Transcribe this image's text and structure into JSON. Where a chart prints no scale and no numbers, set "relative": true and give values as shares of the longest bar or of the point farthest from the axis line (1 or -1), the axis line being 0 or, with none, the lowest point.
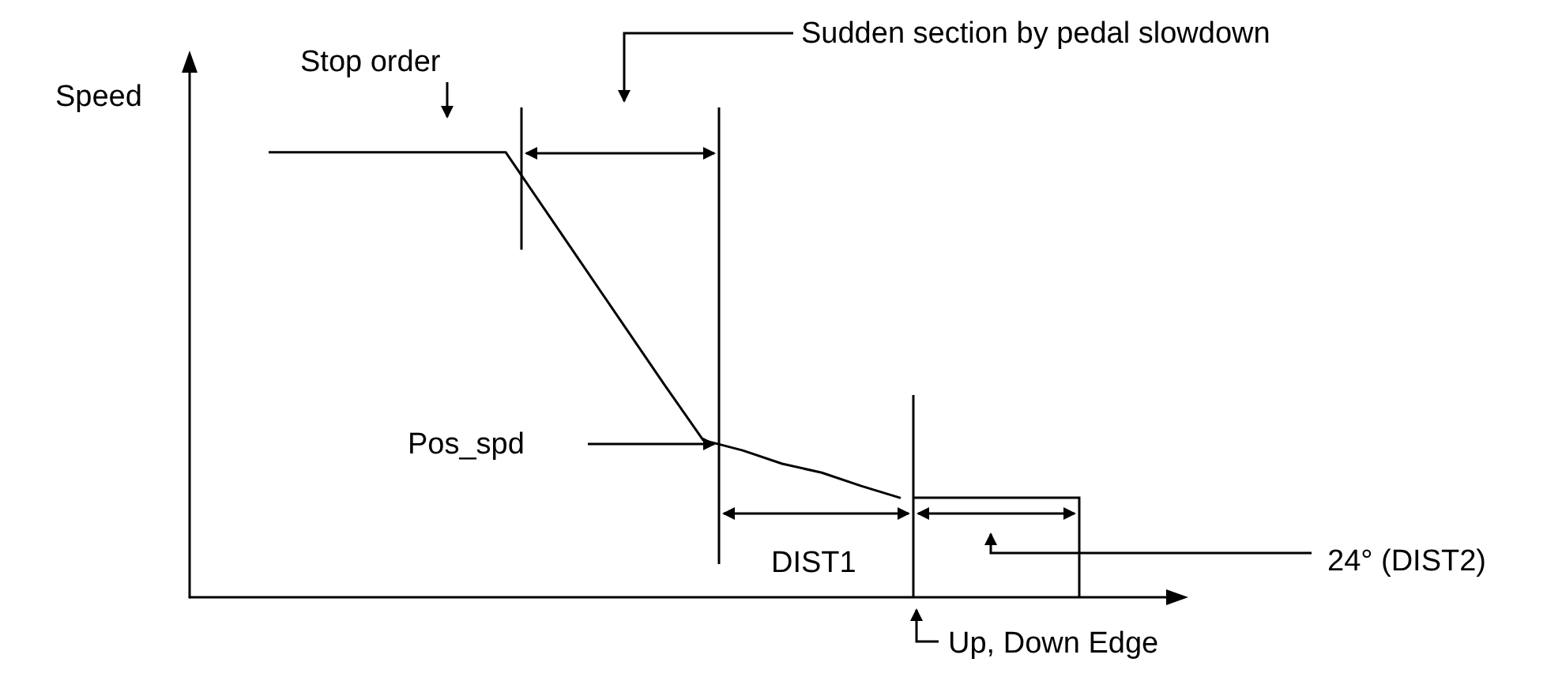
{
  "chart_data": {
    "type": "line",
    "relative": true,
    "ylabel": "Speed",
    "marker": "none",
    "line_style": "solid",
    "categories": [
      null,
      null,
      null,
      null,
      null,
      null,
      null,
      null,
      null,
      null,
      null,
      null,
      null,
      null,
      null,
      null,
      null,
      null,
      null,
      null,
      null,
      null,
      null,
      null,
      null,
      null
    ],
    "series": [
      {
        "color": "#000000",
        "values": [
          null,
          null,
          1,
          1,
          1,
          1,
          1,
          1,
          1,
          0.87,
          0.74,
          0.61,
          0.48,
          0.353,
          0.33,
          0.3,
          0.28,
          0.25,
          0.223,
          null,
          null,
          null,
          null,
          null,
          null,
          null
        ]
      }
    ],
    "annotations": [
      "Stop order",
      "Sudden section by pedal slowdown",
      "Pos_spd",
      "DIST1",
      "24° (DIST2)",
      "Up, Down Edge"
    ]
  }
}
